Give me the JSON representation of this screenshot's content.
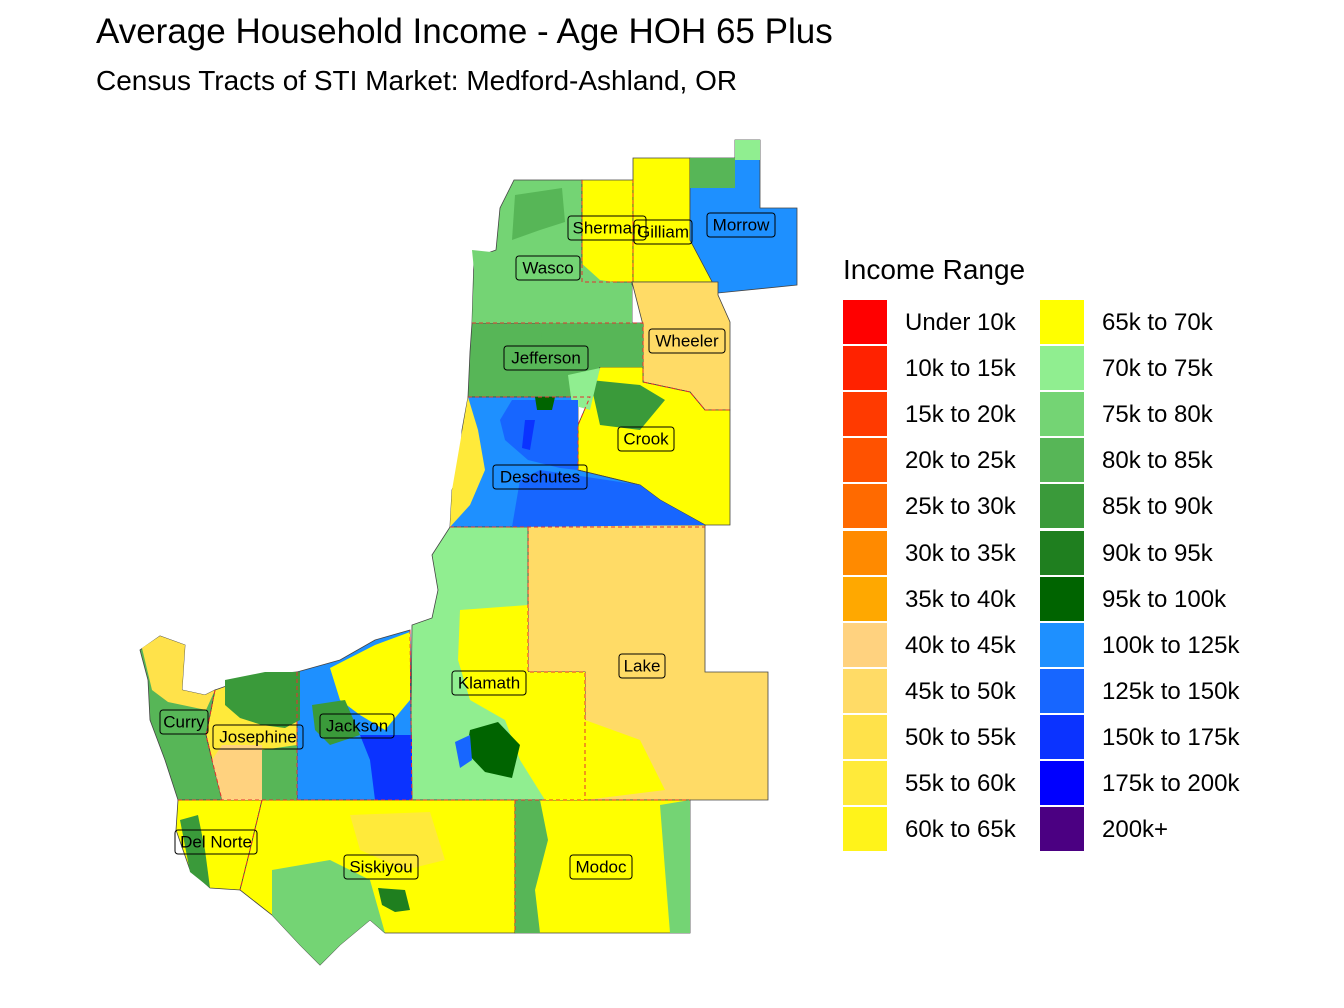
{
  "title": "Average Household Income - Age HOH 65 Plus",
  "subtitle": "Census Tracts of STI Market: Medford-Ashland, OR",
  "legend": {
    "title": "Income Range",
    "items": [
      {
        "label": "Under 10k",
        "color": "#ff0000"
      },
      {
        "label": "10k to 15k",
        "color": "#ff2200"
      },
      {
        "label": "15k to 20k",
        "color": "#ff3a00"
      },
      {
        "label": "20k to 25k",
        "color": "#ff5200"
      },
      {
        "label": "25k to 30k",
        "color": "#ff6a00"
      },
      {
        "label": "30k to 35k",
        "color": "#ff8a00"
      },
      {
        "label": "35k to 40k",
        "color": "#ffa800"
      },
      {
        "label": "40k to 45k",
        "color": "#ffd27f"
      },
      {
        "label": "45k to 50k",
        "color": "#ffdb66"
      },
      {
        "label": "50k to 55k",
        "color": "#ffe24a"
      },
      {
        "label": "55k to 60k",
        "color": "#ffea3a"
      },
      {
        "label": "60k to 65k",
        "color": "#fff31a"
      },
      {
        "label": "65k to 70k",
        "color": "#ffff00"
      },
      {
        "label": "70k to 75k",
        "color": "#90ee90"
      },
      {
        "label": "75k to 80k",
        "color": "#74d474"
      },
      {
        "label": "80k to 85k",
        "color": "#57b657"
      },
      {
        "label": "85k to 90k",
        "color": "#3a9a3a"
      },
      {
        "label": "90k to 95k",
        "color": "#1f7f1f"
      },
      {
        "label": "95k to 100k",
        "color": "#006400"
      },
      {
        "label": "100k to 125k",
        "color": "#1e90ff"
      },
      {
        "label": "125k to 150k",
        "color": "#1766ff"
      },
      {
        "label": "150k to 175k",
        "color": "#0b33ff"
      },
      {
        "label": "175k to 200k",
        "color": "#0000ff"
      },
      {
        "label": "200k+",
        "color": "#4b0082"
      }
    ]
  },
  "counties": [
    {
      "name": "Sherman",
      "range": "65k to 70k"
    },
    {
      "name": "Gilliam",
      "range": "65k to 70k"
    },
    {
      "name": "Morrow",
      "range": "100k to 125k"
    },
    {
      "name": "Wasco",
      "range": "75k to 80k"
    },
    {
      "name": "Wheeler",
      "range": "45k to 50k"
    },
    {
      "name": "Jefferson",
      "range": "80k to 85k"
    },
    {
      "name": "Crook",
      "range": "65k to 70k"
    },
    {
      "name": "Deschutes",
      "range": "100k to 125k"
    },
    {
      "name": "Lake",
      "range": "45k to 50k"
    },
    {
      "name": "Klamath",
      "range": "70k to 75k"
    },
    {
      "name": "Curry",
      "range": "80k to 85k"
    },
    {
      "name": "Josephine",
      "range": "55k to 60k"
    },
    {
      "name": "Jackson",
      "range": "100k to 125k"
    },
    {
      "name": "Del Norte",
      "range": "65k to 70k"
    },
    {
      "name": "Siskiyou",
      "range": "65k to 70k"
    },
    {
      "name": "Modoc",
      "range": "65k to 70k"
    }
  ]
}
